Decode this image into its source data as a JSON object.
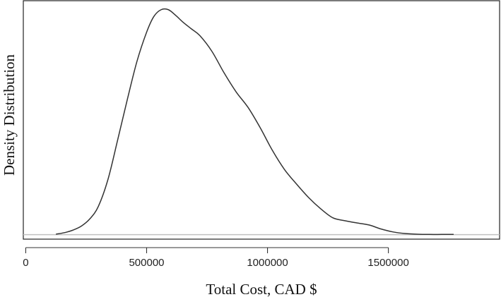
{
  "chart_data": {
    "type": "area",
    "title": "",
    "xlabel": "Total Cost, CAD $",
    "ylabel": "Density Distribution",
    "xlim": [
      -10000,
      1960000
    ],
    "ylim": [
      -0.02,
      1.04
    ],
    "x_ticks": [
      0,
      500000,
      1000000,
      1500000
    ],
    "x_tick_labels": [
      "0",
      "500000",
      "1000000",
      "1500000"
    ],
    "y_ticks_shown": false,
    "grid": false,
    "legend": "none",
    "baseline": 0,
    "series": [
      {
        "x": [
          125000,
          165000,
          195000,
          230000,
          265000,
          300000,
          340000,
          380000,
          420000,
          460000,
          500000,
          530000,
          560000,
          590000,
          620000,
          650000,
          685000,
          720000,
          770000,
          820000,
          870000,
          920000,
          970000,
          1020000,
          1070000,
          1120000,
          1170000,
          1220000,
          1270000,
          1320000,
          1370000,
          1420000,
          1470000,
          1520000,
          1570000,
          1620000,
          1670000,
          1720000,
          1770000
        ],
        "y": [
          0.002,
          0.01,
          0.02,
          0.038,
          0.07,
          0.125,
          0.245,
          0.42,
          0.6,
          0.77,
          0.9,
          0.97,
          1.0,
          1.0,
          0.975,
          0.945,
          0.915,
          0.885,
          0.815,
          0.72,
          0.635,
          0.565,
          0.475,
          0.375,
          0.29,
          0.225,
          0.165,
          0.115,
          0.075,
          0.062,
          0.052,
          0.043,
          0.025,
          0.012,
          0.005,
          0.002,
          0.001,
          0.001,
          0.001
        ]
      }
    ]
  },
  "colors": {
    "line": "#333333",
    "baseline": "#c0c0c0",
    "frame": "#222222",
    "background": "#ffffff"
  }
}
